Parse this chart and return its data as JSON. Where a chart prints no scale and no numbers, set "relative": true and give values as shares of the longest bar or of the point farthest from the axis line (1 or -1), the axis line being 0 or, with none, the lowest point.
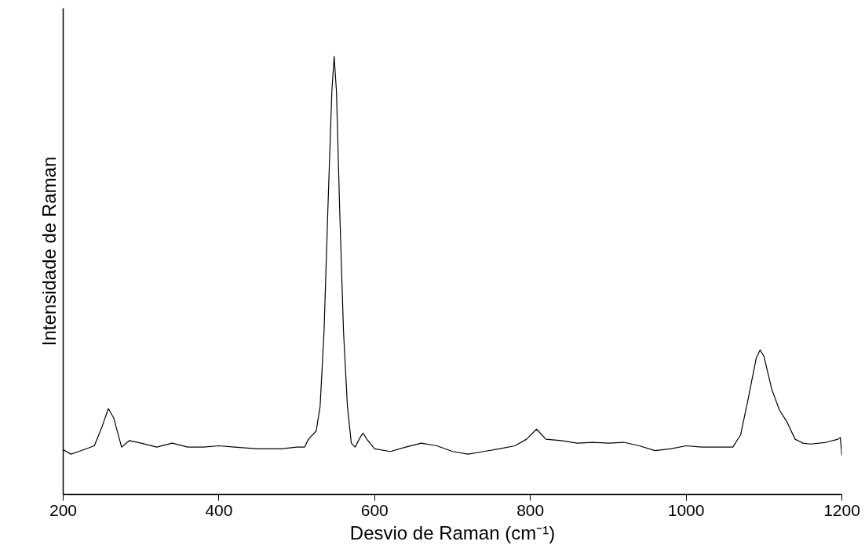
{
  "chart_data": {
    "type": "line",
    "relative": true,
    "xlabel": "Desvio de Raman (cm⁻¹)",
    "ylabel": "Intensidade de Raman",
    "xlim": [
      200,
      1200
    ],
    "xticks": [
      200,
      400,
      600,
      800,
      1000,
      1200
    ],
    "grid": false,
    "marker": "none",
    "line_style": "solid",
    "series": [
      {
        "color": "#000000",
        "x": [
          200,
          210,
          220,
          240,
          250,
          258,
          265,
          275,
          285,
          300,
          320,
          340,
          360,
          380,
          400,
          420,
          450,
          480,
          500,
          510,
          515,
          525,
          530,
          535,
          540,
          545,
          548,
          551,
          555,
          560,
          565,
          570,
          575,
          580,
          585,
          590,
          600,
          620,
          640,
          660,
          680,
          700,
          720,
          740,
          760,
          780,
          795,
          808,
          820,
          840,
          860,
          880,
          900,
          920,
          940,
          960,
          980,
          1000,
          1020,
          1040,
          1060,
          1070,
          1080,
          1090,
          1095,
          1100,
          1110,
          1120,
          1130,
          1140,
          1150,
          1160,
          1180,
          1195,
          1198,
          1200
        ],
        "values": [
          0.102,
          0.092,
          0.098,
          0.111,
          0.155,
          0.196,
          0.174,
          0.108,
          0.123,
          0.117,
          0.108,
          0.117,
          0.108,
          0.108,
          0.111,
          0.108,
          0.104,
          0.104,
          0.108,
          0.108,
          0.126,
          0.145,
          0.202,
          0.372,
          0.655,
          0.919,
          1.0,
          0.919,
          0.655,
          0.372,
          0.202,
          0.117,
          0.108,
          0.126,
          0.14,
          0.126,
          0.104,
          0.098,
          0.108,
          0.117,
          0.111,
          0.098,
          0.092,
          0.098,
          0.104,
          0.111,
          0.126,
          0.149,
          0.126,
          0.123,
          0.117,
          0.119,
          0.117,
          0.119,
          0.111,
          0.1,
          0.104,
          0.111,
          0.108,
          0.108,
          0.108,
          0.136,
          0.221,
          0.311,
          0.33,
          0.315,
          0.24,
          0.192,
          0.164,
          0.126,
          0.117,
          0.115,
          0.119,
          0.126,
          0.13,
          0.089
        ]
      }
    ]
  }
}
